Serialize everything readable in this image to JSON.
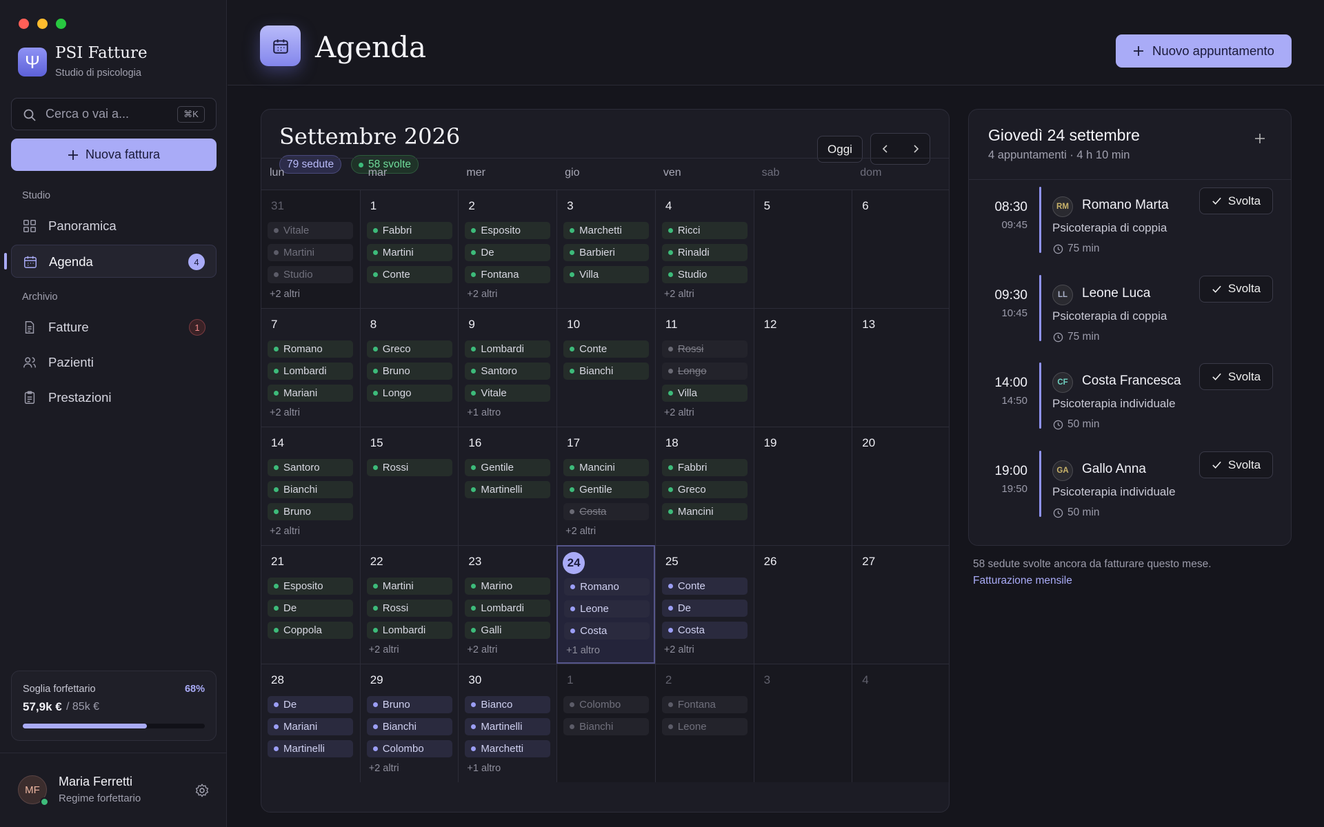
{
  "sidebar": {
    "app_name": "PSI Fatture",
    "app_subtitle": "Studio di psicologia",
    "search_placeholder": "Cerca o vai a...",
    "search_shortcut": "⌘K",
    "new_invoice": "Nuova fattura",
    "sections": [
      {
        "title": "Studio",
        "items": [
          {
            "label": "Panoramica",
            "icon": "grid"
          },
          {
            "label": "Agenda",
            "icon": "calendar",
            "active": true,
            "badge": 4
          }
        ]
      },
      {
        "title": "Archivio",
        "items": [
          {
            "label": "Fatture",
            "icon": "doc",
            "badge": 1,
            "badge_alert": true
          },
          {
            "label": "Pazienti",
            "icon": "users"
          },
          {
            "label": "Prestazioni",
            "icon": "clipboard"
          }
        ]
      }
    ],
    "threshold": {
      "label": "Soglia forfettario",
      "percent": 68,
      "percent_label": "68%",
      "amount": "57,9k €",
      "limit": "/ 85k €"
    },
    "user": {
      "initials": "MF",
      "name": "Maria Ferretti",
      "role": "Regime forfettario"
    }
  },
  "header": {
    "title": "Agenda",
    "new_appointment": "Nuovo appuntamento"
  },
  "calendar": {
    "title": "Settembre 2026",
    "sessions_badge": "79 sedute",
    "done_badge": "58 svolte",
    "today_button": "Oggi",
    "weekdays": [
      "lun",
      "mar",
      "mer",
      "gio",
      "ven",
      "sab",
      "dom"
    ],
    "weeks": [
      [
        {
          "day": 31,
          "status": "muted",
          "events": [
            "Vitale",
            "Martini",
            "Studio"
          ],
          "more": "+2 altri"
        },
        {
          "day": 1,
          "events": [
            "Fabbri",
            "Martini",
            "Conte"
          ]
        },
        {
          "day": 2,
          "events": [
            "Esposito",
            "De",
            "Fontana"
          ],
          "more": "+2 altri"
        },
        {
          "day": 3,
          "events": [
            "Marchetti",
            "Barbieri",
            "Villa"
          ]
        },
        {
          "day": 4,
          "events": [
            "Ricci",
            "Rinaldi",
            "Studio"
          ],
          "more": "+2 altri"
        },
        {
          "day": 5,
          "events": []
        },
        {
          "day": 6,
          "events": []
        }
      ],
      [
        {
          "day": 7,
          "events": [
            "Romano",
            "Lombardi",
            "Mariani"
          ],
          "more": "+2 altri"
        },
        {
          "day": 8,
          "events": [
            "Greco",
            "Bruno",
            "Longo"
          ]
        },
        {
          "day": 9,
          "events": [
            "Lombardi",
            "Santoro",
            "Vitale"
          ],
          "more": "+1 altro"
        },
        {
          "day": 10,
          "events": [
            "Conte",
            "Bianchi"
          ]
        },
        {
          "day": 11,
          "events": [
            {
              "name": "Rossi",
              "status": "cancelled"
            },
            {
              "name": "Longo",
              "status": "cancelled"
            },
            "Villa"
          ],
          "more": "+2 altri"
        },
        {
          "day": 12,
          "events": []
        },
        {
          "day": 13,
          "events": []
        }
      ],
      [
        {
          "day": 14,
          "events": [
            "Santoro",
            "Bianchi",
            "Bruno"
          ],
          "more": "+2 altri"
        },
        {
          "day": 15,
          "events": [
            "Rossi"
          ]
        },
        {
          "day": 16,
          "events": [
            "Gentile",
            "Martinelli"
          ]
        },
        {
          "day": 17,
          "events": [
            "Mancini",
            "Gentile",
            {
              "name": "Costa",
              "status": "cancelled"
            }
          ],
          "more": "+2 altri"
        },
        {
          "day": 18,
          "events": [
            "Fabbri",
            "Greco",
            "Mancini"
          ]
        },
        {
          "day": 19,
          "events": []
        },
        {
          "day": 20,
          "events": []
        }
      ],
      [
        {
          "day": 21,
          "events": [
            "Esposito",
            "De",
            "Coppola"
          ]
        },
        {
          "day": 22,
          "events": [
            "Martini",
            "Rossi",
            "Lombardi"
          ],
          "more": "+2 altri"
        },
        {
          "day": 23,
          "events": [
            "Marino",
            "Lombardi",
            "Galli"
          ],
          "more": "+2 altri"
        },
        {
          "day": 24,
          "today": true,
          "status": "planned",
          "events": [
            "Romano",
            "Leone",
            "Costa"
          ],
          "more": "+1 altro"
        },
        {
          "day": 25,
          "status": "planned",
          "events": [
            "Conte",
            "De",
            "Costa"
          ],
          "more": "+2 altri"
        },
        {
          "day": 26,
          "events": []
        },
        {
          "day": 27,
          "events": []
        }
      ],
      [
        {
          "day": 28,
          "status": "planned",
          "events": [
            "De",
            "Mariani",
            "Martinelli"
          ]
        },
        {
          "day": 29,
          "status": "planned",
          "events": [
            "Bruno",
            "Bianchi",
            "Colombo"
          ],
          "more": "+2 altri"
        },
        {
          "day": 30,
          "status": "planned",
          "events": [
            "Bianco",
            "Martinelli",
            "Marchetti"
          ],
          "more": "+1 altro"
        },
        {
          "day": 1,
          "status": "muted",
          "events": [
            "Colombo",
            "Bianchi"
          ]
        },
        {
          "day": 2,
          "status": "muted",
          "events": [
            "Fontana",
            "Leone"
          ]
        },
        {
          "day": 3,
          "status": "muted",
          "events": []
        },
        {
          "day": 4,
          "status": "muted",
          "events": []
        }
      ]
    ]
  },
  "day_panel": {
    "title": "Giovedì 24 settembre",
    "subtitle": "4 appuntamenti · 4 h 10 min",
    "appointments": [
      {
        "start": "08:30",
        "end": "09:45",
        "initials": "RM",
        "avatar_color": "#c9b36a",
        "name": "Romano Marta",
        "service": "Psicoterapia di coppia",
        "duration": "75 min",
        "action": "Svolta"
      },
      {
        "start": "09:30",
        "end": "10:45",
        "initials": "LL",
        "avatar_color": "#a9b0c8",
        "name": "Leone Luca",
        "service": "Psicoterapia di coppia",
        "duration": "75 min",
        "action": "Svolta"
      },
      {
        "start": "14:00",
        "end": "14:50",
        "initials": "CF",
        "avatar_color": "#6fd0c0",
        "name": "Costa Francesca",
        "service": "Psicoterapia individuale",
        "duration": "50 min",
        "action": "Svolta"
      },
      {
        "start": "19:00",
        "end": "19:50",
        "initials": "GA",
        "avatar_color": "#c9b36a",
        "name": "Gallo Anna",
        "service": "Psicoterapia individuale",
        "duration": "50 min",
        "action": "Svolta"
      }
    ],
    "note": "58 sedute svolte ancora da fatturare questo mese.",
    "link": "Fatturazione mensile"
  }
}
